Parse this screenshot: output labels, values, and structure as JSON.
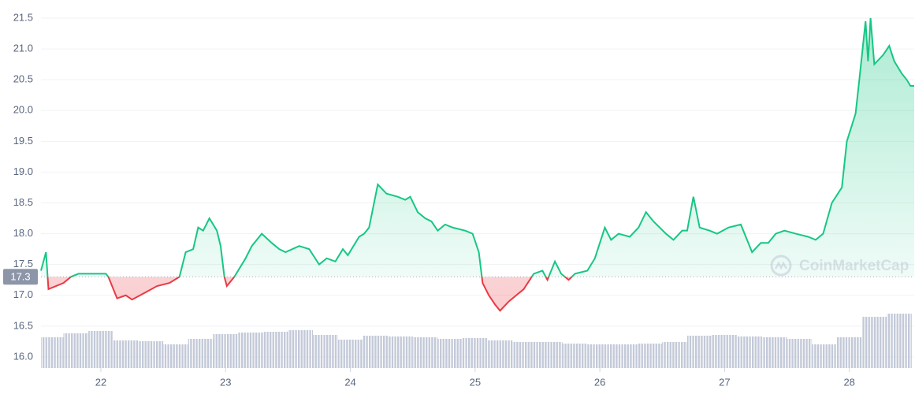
{
  "chart_data": {
    "type": "line",
    "x": [
      21.52,
      21.56,
      21.58,
      21.7,
      21.76,
      21.82,
      22.04,
      22.06,
      22.13,
      22.2,
      22.25,
      22.36,
      22.45,
      22.55,
      22.63,
      22.68,
      22.74,
      22.78,
      22.82,
      22.87,
      22.93,
      22.96,
      22.99,
      23.01,
      23.07,
      23.16,
      23.21,
      23.29,
      23.37,
      23.43,
      23.48,
      23.59,
      23.67,
      23.75,
      23.81,
      23.88,
      23.94,
      23.98,
      24.07,
      24.11,
      24.15,
      24.22,
      24.29,
      24.38,
      24.44,
      24.48,
      24.54,
      24.6,
      24.65,
      24.7,
      24.76,
      24.82,
      24.92,
      24.98,
      25.03,
      25.06,
      25.11,
      25.16,
      25.2,
      25.27,
      25.33,
      25.39,
      25.47,
      25.54,
      25.58,
      25.64,
      25.69,
      25.75,
      25.8,
      25.9,
      25.96,
      26.04,
      26.09,
      26.15,
      26.24,
      26.31,
      26.37,
      26.43,
      26.53,
      26.59,
      26.66,
      26.7,
      26.75,
      26.8,
      26.88,
      26.94,
      27.03,
      27.13,
      27.19,
      27.22,
      27.29,
      27.35,
      27.41,
      27.48,
      27.57,
      27.67,
      27.73,
      27.79,
      27.86,
      27.94,
      27.98,
      28.05,
      28.08,
      28.13,
      28.15,
      28.17,
      28.2,
      28.27,
      28.32,
      28.36,
      28.42,
      28.46,
      28.49,
      28.52
    ],
    "series": [
      {
        "values": [
          17.4,
          17.7,
          17.1,
          17.2,
          17.3,
          17.35,
          17.35,
          17.3,
          16.95,
          17.0,
          16.93,
          17.05,
          17.15,
          17.2,
          17.3,
          17.7,
          17.75,
          18.1,
          18.05,
          18.25,
          18.05,
          17.8,
          17.3,
          17.15,
          17.3,
          17.6,
          17.8,
          18.0,
          17.85,
          17.75,
          17.7,
          17.8,
          17.75,
          17.5,
          17.6,
          17.55,
          17.75,
          17.65,
          17.95,
          18.0,
          18.1,
          18.8,
          18.65,
          18.6,
          18.55,
          18.6,
          18.35,
          18.25,
          18.2,
          18.05,
          18.15,
          18.1,
          18.05,
          18.0,
          17.7,
          17.2,
          17.0,
          16.85,
          16.75,
          16.9,
          17.0,
          17.1,
          17.35,
          17.4,
          17.25,
          17.55,
          17.35,
          17.25,
          17.35,
          17.4,
          17.6,
          18.1,
          17.9,
          18.0,
          17.95,
          18.1,
          18.35,
          18.2,
          18.0,
          17.9,
          18.05,
          18.05,
          18.6,
          18.1,
          18.05,
          18.0,
          18.1,
          18.15,
          17.85,
          17.7,
          17.85,
          17.85,
          18.0,
          18.05,
          18.0,
          17.95,
          17.9,
          18.0,
          18.5,
          18.75,
          19.5,
          19.95,
          20.5,
          21.45,
          20.8,
          21.5,
          20.75,
          20.9,
          21.05,
          20.8,
          20.6,
          20.5,
          20.4,
          20.4
        ],
        "color_up": "#16c784",
        "color_down": "#ea3943"
      }
    ],
    "baseline": 17.3,
    "volume": {
      "x": [
        21.6,
        21.8,
        22.0,
        22.2,
        22.4,
        22.6,
        22.8,
        23.0,
        23.2,
        23.4,
        23.6,
        23.8,
        24.0,
        24.2,
        24.4,
        24.6,
        24.8,
        25.0,
        25.2,
        25.4,
        25.6,
        25.8,
        26.0,
        26.2,
        26.4,
        26.6,
        26.8,
        27.0,
        27.2,
        27.4,
        27.6,
        27.8,
        28.0,
        28.2,
        28.4
      ],
      "values": [
        39,
        44,
        47,
        35,
        34,
        30,
        37,
        43,
        45,
        46,
        48,
        42,
        36,
        41,
        40,
        39,
        37,
        38,
        35,
        33,
        33,
        31,
        30,
        30,
        31,
        33,
        41,
        42,
        40,
        39,
        37,
        30,
        39,
        65,
        69
      ],
      "ylim": [
        0,
        100
      ],
      "color": "#c3c9d8"
    },
    "xlim": [
      21.52,
      28.52
    ],
    "xticks": [
      22,
      23,
      24,
      25,
      26,
      27,
      28
    ],
    "ylim": [
      15.82,
      21.73
    ],
    "yticks": [
      {
        "value": 16,
        "label": "16.0"
      },
      16.5,
      {
        "value": 17,
        "label": "17.0"
      },
      17.5,
      {
        "value": 18,
        "label": "18.0"
      },
      18.5,
      {
        "value": 19,
        "label": "19.0"
      },
      19.5,
      {
        "value": 20,
        "label": "20.0"
      },
      20.5,
      {
        "value": 21,
        "label": "21.0"
      },
      21.5
    ],
    "grid": true,
    "watermark": "CoinMarketCap"
  }
}
